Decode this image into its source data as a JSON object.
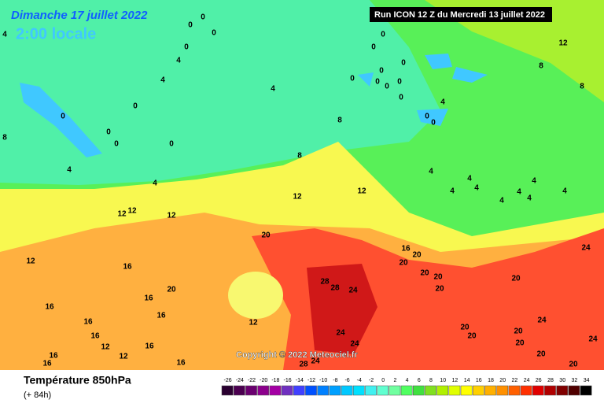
{
  "header": {
    "date": "Dimanche 17 juillet 2022",
    "time": "2:00 locale",
    "run": "Run ICON 12 Z du Mercredi 13 juillet 2022"
  },
  "copyright": "Copyright © 2022 Meteociel.fr",
  "footer": {
    "title": "Température 850hPa",
    "lead": "(+ 84h)"
  },
  "contour_labels": [
    0,
    0,
    0,
    0,
    0,
    0,
    0,
    0,
    0,
    0,
    0,
    0,
    0,
    0,
    0,
    0,
    0,
    0,
    4,
    4,
    4,
    4,
    4,
    4,
    4,
    0,
    0,
    4,
    4,
    4,
    4,
    4,
    4,
    4,
    4,
    4,
    8,
    8,
    8,
    8,
    8,
    12,
    12,
    12,
    12,
    12,
    12,
    12,
    12,
    12,
    20,
    16,
    16,
    20,
    16,
    16,
    16,
    16,
    16,
    12,
    16,
    16,
    16,
    16,
    20,
    20,
    20,
    20,
    20,
    20,
    24,
    28,
    28,
    24,
    24,
    24,
    20,
    20,
    20,
    20,
    24,
    24,
    20,
    20,
    28,
    24
  ],
  "scale": {
    "values": [
      -26,
      -24,
      -22,
      -20,
      -18,
      -16,
      -14,
      -12,
      -10,
      -8,
      -6,
      -4,
      -2,
      0,
      2,
      4,
      6,
      8,
      10,
      12,
      14,
      16,
      18,
      20,
      22,
      24,
      26,
      28,
      30,
      32,
      34
    ],
    "colors": [
      "#2a0030",
      "#4b0050",
      "#6a006f",
      "#8c008c",
      "#a400a4",
      "#7030c0",
      "#4040ff",
      "#0050ff",
      "#0080ff",
      "#00a0ff",
      "#00c8ff",
      "#00e0ff",
      "#40f0f0",
      "#60ffd0",
      "#70ffa0",
      "#50ff60",
      "#40e040",
      "#80e020",
      "#b0f000",
      "#e0ff00",
      "#ffff00",
      "#ffd000",
      "#ffb000",
      "#ff9000",
      "#ff6000",
      "#ff3000",
      "#e00000",
      "#b00000",
      "#800000",
      "#500000",
      "#000000"
    ]
  }
}
